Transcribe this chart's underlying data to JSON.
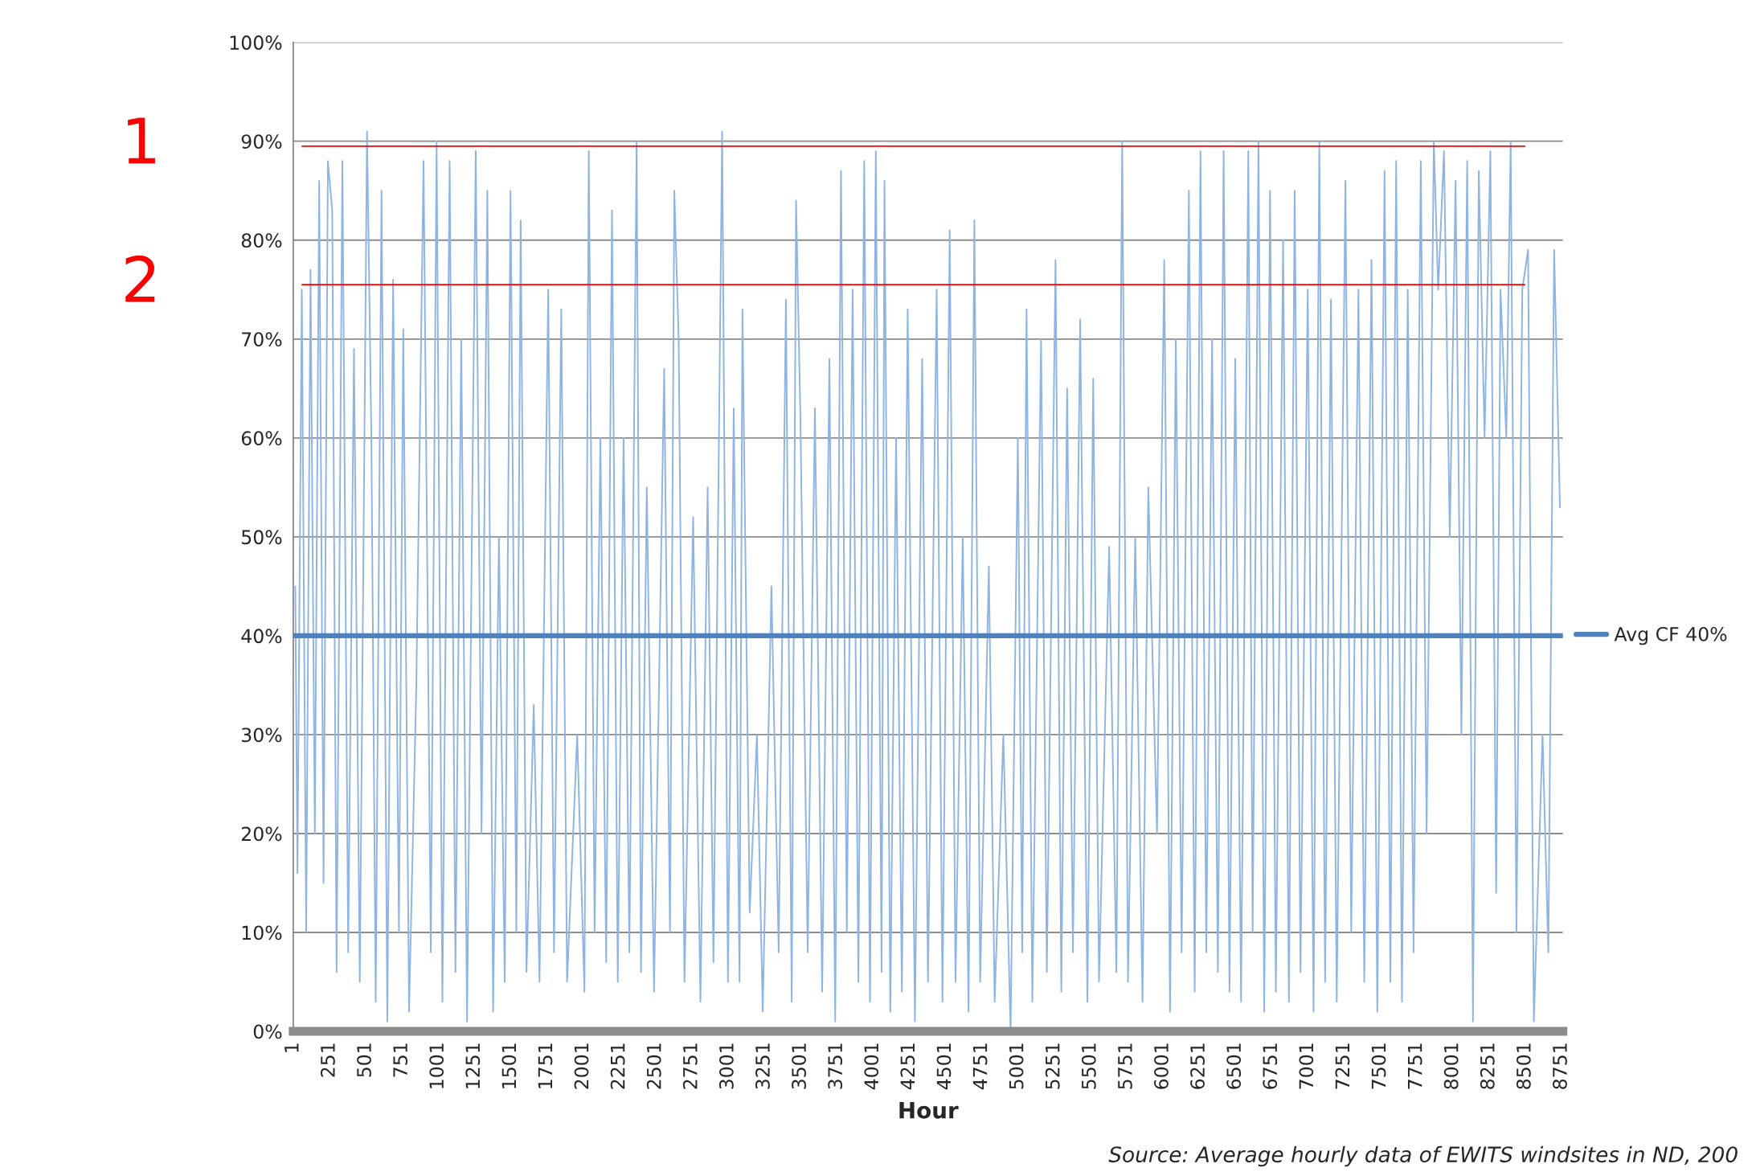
{
  "chart_data": {
    "type": "line",
    "xlabel": "Hour",
    "annotations": [
      "1",
      "2",
      "Source: Average hourly data of EWITS windsites in ND, 200"
    ],
    "series": [
      {
        "color": "#8db4e2",
        "x": [
          15,
          30,
          60,
          90,
          120,
          150,
          180,
          210,
          240,
          270,
          300,
          340,
          380,
          420,
          460,
          510,
          540,
          570,
          610,
          650,
          690,
          730,
          760,
          800,
          850,
          900,
          950,
          990,
          1030,
          1080,
          1120,
          1160,
          1200,
          1260,
          1300,
          1340,
          1380,
          1420,
          1460,
          1500,
          1540,
          1570,
          1610,
          1660,
          1700,
          1760,
          1800,
          1850,
          1890,
          1960,
          2010,
          2040,
          2080,
          2120,
          2160,
          2200,
          2240,
          2280,
          2320,
          2370,
          2400,
          2440,
          2490,
          2560,
          2600,
          2630,
          2660,
          2700,
          2760,
          2810,
          2860,
          2900,
          2960,
          3000,
          3040,
          3080,
          3100,
          3150,
          3200,
          3240,
          3300,
          3350,
          3400,
          3440,
          3470,
          3500,
          3550,
          3600,
          3650,
          3700,
          3740,
          3780,
          3820,
          3860,
          3900,
          3940,
          3980,
          4020,
          4060,
          4080,
          4120,
          4160,
          4200,
          4240,
          4290,
          4340,
          4380,
          4440,
          4480,
          4530,
          4570,
          4620,
          4660,
          4700,
          4740,
          4800,
          4840,
          4900,
          4950,
          5000,
          5030,
          5060,
          5100,
          5160,
          5200,
          5260,
          5300,
          5340,
          5380,
          5430,
          5480,
          5520,
          5560,
          5630,
          5680,
          5720,
          5760,
          5810,
          5860,
          5900,
          5960,
          6010,
          6050,
          6090,
          6130,
          6180,
          6220,
          6260,
          6300,
          6340,
          6380,
          6420,
          6460,
          6500,
          6540,
          6590,
          6620,
          6660,
          6700,
          6740,
          6780,
          6830,
          6870,
          6910,
          6950,
          7000,
          7040,
          7080,
          7120,
          7160,
          7200,
          7260,
          7300,
          7350,
          7390,
          7440,
          7480,
          7530,
          7570,
          7610,
          7650,
          7690,
          7730,
          7780,
          7820,
          7870,
          7900,
          7940,
          7980,
          8020,
          8060,
          8100,
          8140,
          8180,
          8220,
          8260,
          8300,
          8330,
          8370,
          8400,
          8440,
          8480,
          8520,
          8560,
          8620,
          8660,
          8700,
          8740
        ],
        "values": [
          45,
          16,
          75,
          10,
          77,
          20,
          86,
          15,
          88,
          83,
          6,
          88,
          8,
          69,
          5,
          91,
          60,
          3,
          85,
          1,
          76,
          10,
          71,
          2,
          35,
          88,
          8,
          90,
          3,
          88,
          6,
          70,
          1,
          89,
          20,
          85,
          2,
          50,
          5,
          85,
          10,
          82,
          6,
          33,
          5,
          75,
          8,
          73,
          5,
          30,
          4,
          89,
          10,
          60,
          7,
          83,
          5,
          60,
          8,
          90,
          6,
          55,
          4,
          67,
          10,
          85,
          70,
          5,
          52,
          3,
          55,
          7,
          91,
          5,
          63,
          5,
          73,
          12,
          30,
          2,
          45,
          8,
          74,
          3,
          84,
          62,
          8,
          63,
          4,
          68,
          1,
          87,
          10,
          75,
          5,
          88,
          3,
          89,
          6,
          86,
          2,
          60,
          4,
          73,
          1,
          68,
          5,
          75,
          3,
          81,
          5,
          50,
          2,
          82,
          5,
          47,
          3,
          30,
          0,
          60,
          8,
          73,
          3,
          70,
          6,
          78,
          4,
          65,
          8,
          72,
          3,
          66,
          5,
          49,
          6,
          90,
          5,
          50,
          3,
          55,
          20,
          78,
          2,
          70,
          8,
          85,
          4,
          89,
          8,
          70,
          6,
          89,
          4,
          68,
          3,
          89,
          10,
          90,
          2,
          85,
          4,
          80,
          3,
          85,
          6,
          75,
          2,
          90,
          5,
          74,
          3,
          86,
          10,
          75,
          5,
          78,
          2,
          87,
          5,
          88,
          3,
          75,
          8,
          88,
          20,
          90,
          75,
          89,
          50,
          86,
          30,
          88,
          1,
          87,
          60,
          89,
          14,
          75,
          60,
          90,
          10,
          75,
          79,
          1,
          30,
          8,
          79,
          53
        ]
      },
      {
        "name": "Avg CF 40%",
        "color": "#4f81bd",
        "x": [
          1,
          8760
        ],
        "values": [
          40,
          40
        ]
      }
    ],
    "ref_lines": [
      {
        "axis": "y",
        "value": 89.5,
        "color": "#ff0000"
      },
      {
        "axis": "y",
        "value": 75.5,
        "color": "#ff0000"
      }
    ],
    "xlim": [
      1,
      8760
    ],
    "xticks": [
      1,
      251,
      501,
      751,
      1001,
      1251,
      1501,
      1751,
      2001,
      2251,
      2501,
      2751,
      3001,
      3251,
      3501,
      3751,
      4001,
      4251,
      4501,
      4751,
      5001,
      5251,
      5501,
      5751,
      6001,
      6251,
      6501,
      6751,
      7001,
      7251,
      7501,
      7751,
      8001,
      8251,
      8501,
      8751
    ],
    "ylim": [
      0,
      100
    ],
    "yticks": [
      {
        "value": 0,
        "label": "0%"
      },
      {
        "value": 10,
        "label": "10%"
      },
      {
        "value": 20,
        "label": "20%"
      },
      {
        "value": 30,
        "label": "30%"
      },
      {
        "value": 40,
        "label": "40%"
      },
      {
        "value": 50,
        "label": "50%"
      },
      {
        "value": 60,
        "label": "60%"
      },
      {
        "value": 70,
        "label": "70%"
      },
      {
        "value": 80,
        "label": "80%"
      },
      {
        "value": 90,
        "label": "90%"
      },
      {
        "value": 100,
        "label": "100%"
      }
    ],
    "grid": "y",
    "legend": "right",
    "marker": "none",
    "line_style": "solid"
  }
}
